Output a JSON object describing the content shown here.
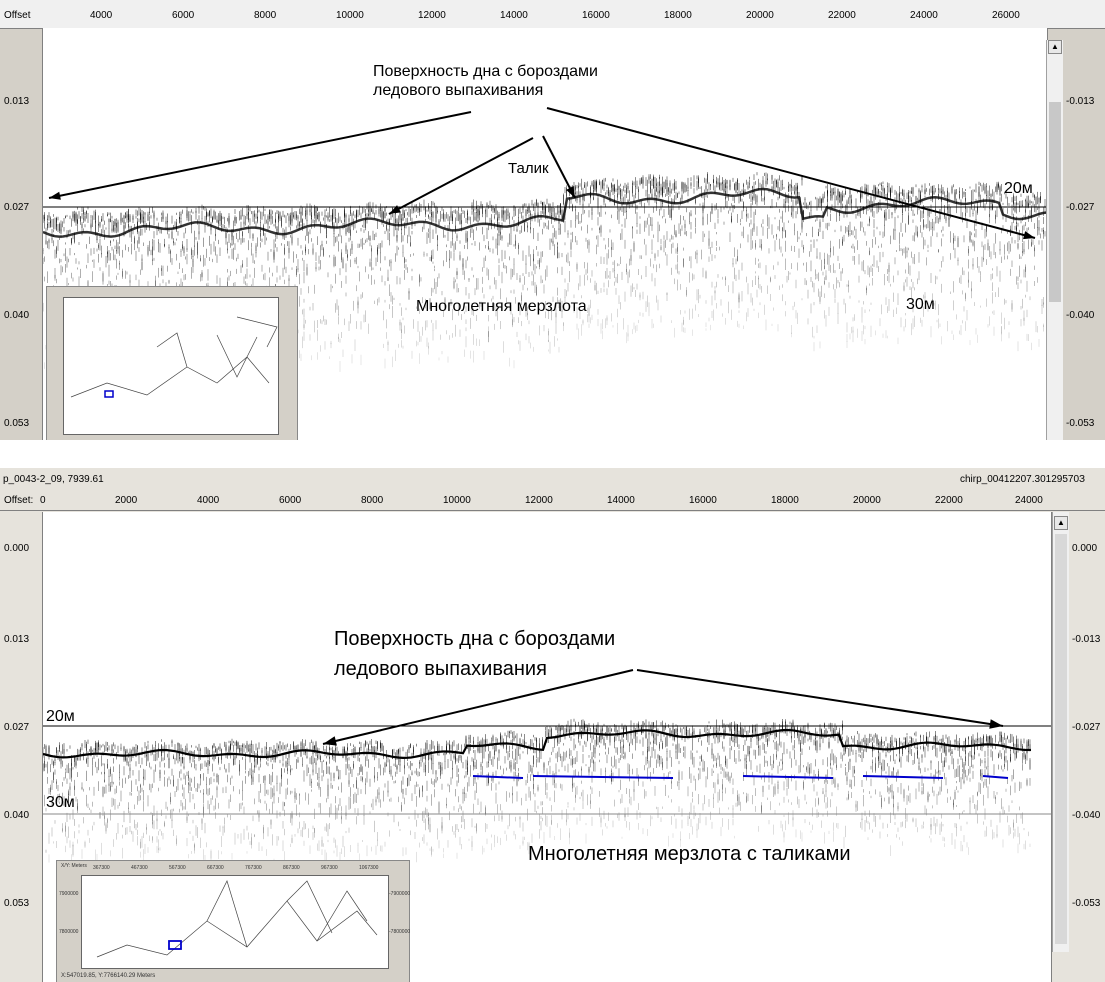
{
  "top_panel": {
    "offset_label": "Offset",
    "x_ticks": [
      "4000",
      "6000",
      "8000",
      "10000",
      "12000",
      "14000",
      "16000",
      "18000",
      "20000",
      "22000",
      "24000",
      "26000"
    ],
    "y_ticks_left": [
      "0.013",
      "0.027",
      "0.040",
      "0.053"
    ],
    "y_ticks_right": [
      "-0.013",
      "-0.027",
      "-0.040",
      "-0.053"
    ],
    "annotations": {
      "bottom_surface_line1": "Поверхность дна с бороздами",
      "bottom_surface_line2": "ледового выпахивания",
      "talik": "Талик",
      "depth_20": "20м",
      "permafrost": "Многолетняя мерзлота",
      "depth_30": "30м"
    }
  },
  "bottom_panel": {
    "file_title": "p_0043-2_09, 7939.61",
    "right_title": "chirp_00412207.30129570З",
    "offset_label": "Offset:",
    "offset_zero": "0",
    "x_ticks": [
      "2000",
      "4000",
      "6000",
      "8000",
      "10000",
      "12000",
      "14000",
      "16000",
      "18000",
      "20000",
      "22000"
    ],
    "x_end_tick": "24000",
    "y_ticks_left": [
      "0.000",
      "0.013",
      "0.027",
      "0.040",
      "0.053"
    ],
    "y_ticks_right": [
      "0.000",
      "-0.013",
      "-0.027",
      "-0.040",
      "-0.053"
    ],
    "annotations": {
      "bottom_surface_line1": "Поверхность дна с бороздами",
      "bottom_surface_line2": "ледового выпахивания",
      "depth_20": "20м",
      "depth_30": "30м",
      "permafrost_taliks": "Многолетняя мерзлота с таликами"
    },
    "map": {
      "corner_label": "X/Y: Meters",
      "x_ticks": [
        "367300",
        "467300",
        "567300",
        "667300",
        "767300",
        "867300",
        "967300",
        "1067300"
      ],
      "y_ticks_left": [
        "7900000",
        "7800000"
      ],
      "y_ticks_right": [
        "-7900000",
        "-7800000"
      ],
      "status": "X:547019.85, Y:7766140.29 Meters"
    }
  },
  "colors": {
    "trackline": "#0000cc",
    "reflector": "#000000",
    "window_bg": "#d4d0c8"
  }
}
